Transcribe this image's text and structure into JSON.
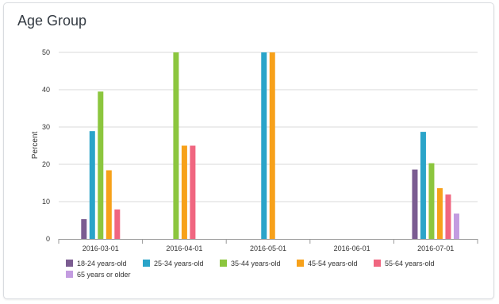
{
  "widget": {
    "title": "Age Group"
  },
  "chart_data": {
    "type": "bar",
    "title": "Age Group",
    "xlabel": "",
    "ylabel": "Percent",
    "ylim": [
      0,
      50
    ],
    "yticks": [
      0,
      10,
      20,
      30,
      40,
      50
    ],
    "grid": true,
    "legend_position": "bottom",
    "categories": [
      "2016-03-01",
      "2016-04-01",
      "2016-05-01",
      "2016-06-01",
      "2016-07-01"
    ],
    "series": [
      {
        "name": "18-24 years-old",
        "color": "#7b5c91",
        "values": [
          5.3,
          null,
          null,
          null,
          18.6
        ]
      },
      {
        "name": "25-34 years-old",
        "color": "#2aa4c9",
        "values": [
          28.9,
          null,
          50,
          null,
          28.7
        ]
      },
      {
        "name": "35-44 years-old",
        "color": "#8cc63e",
        "values": [
          39.5,
          50,
          null,
          null,
          20.3
        ]
      },
      {
        "name": "45-54 years-old",
        "color": "#f7a11a",
        "values": [
          18.4,
          25,
          50,
          null,
          13.6
        ]
      },
      {
        "name": "55-64 years-old",
        "color": "#f06680",
        "values": [
          7.9,
          25,
          null,
          null,
          11.9
        ]
      },
      {
        "name": "65 years or older",
        "color": "#c39ce0",
        "values": [
          null,
          null,
          null,
          null,
          6.8
        ]
      }
    ]
  }
}
